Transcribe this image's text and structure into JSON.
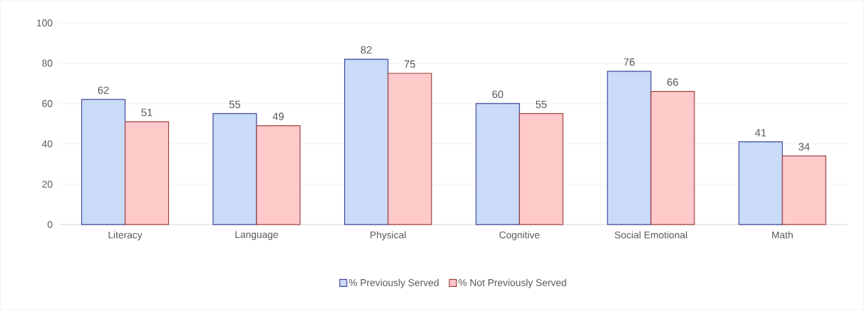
{
  "chart_data": {
    "type": "bar",
    "categories": [
      "Literacy",
      "Language",
      "Physical",
      "Cognitive",
      "Social Emotional",
      "Math"
    ],
    "series": [
      {
        "name": "% Previously Served",
        "color": "#c9dbf7",
        "values": [
          62,
          55,
          82,
          60,
          76,
          41
        ]
      },
      {
        "name": "% Not Previously Served",
        "color": "#ffcaca",
        "values": [
          51,
          49,
          75,
          55,
          66,
          34
        ]
      }
    ],
    "ylim": [
      0,
      100
    ],
    "yticks": [
      0,
      20,
      40,
      60,
      80,
      100
    ],
    "grid": "y",
    "legend": "bottom",
    "data_labels": true
  }
}
